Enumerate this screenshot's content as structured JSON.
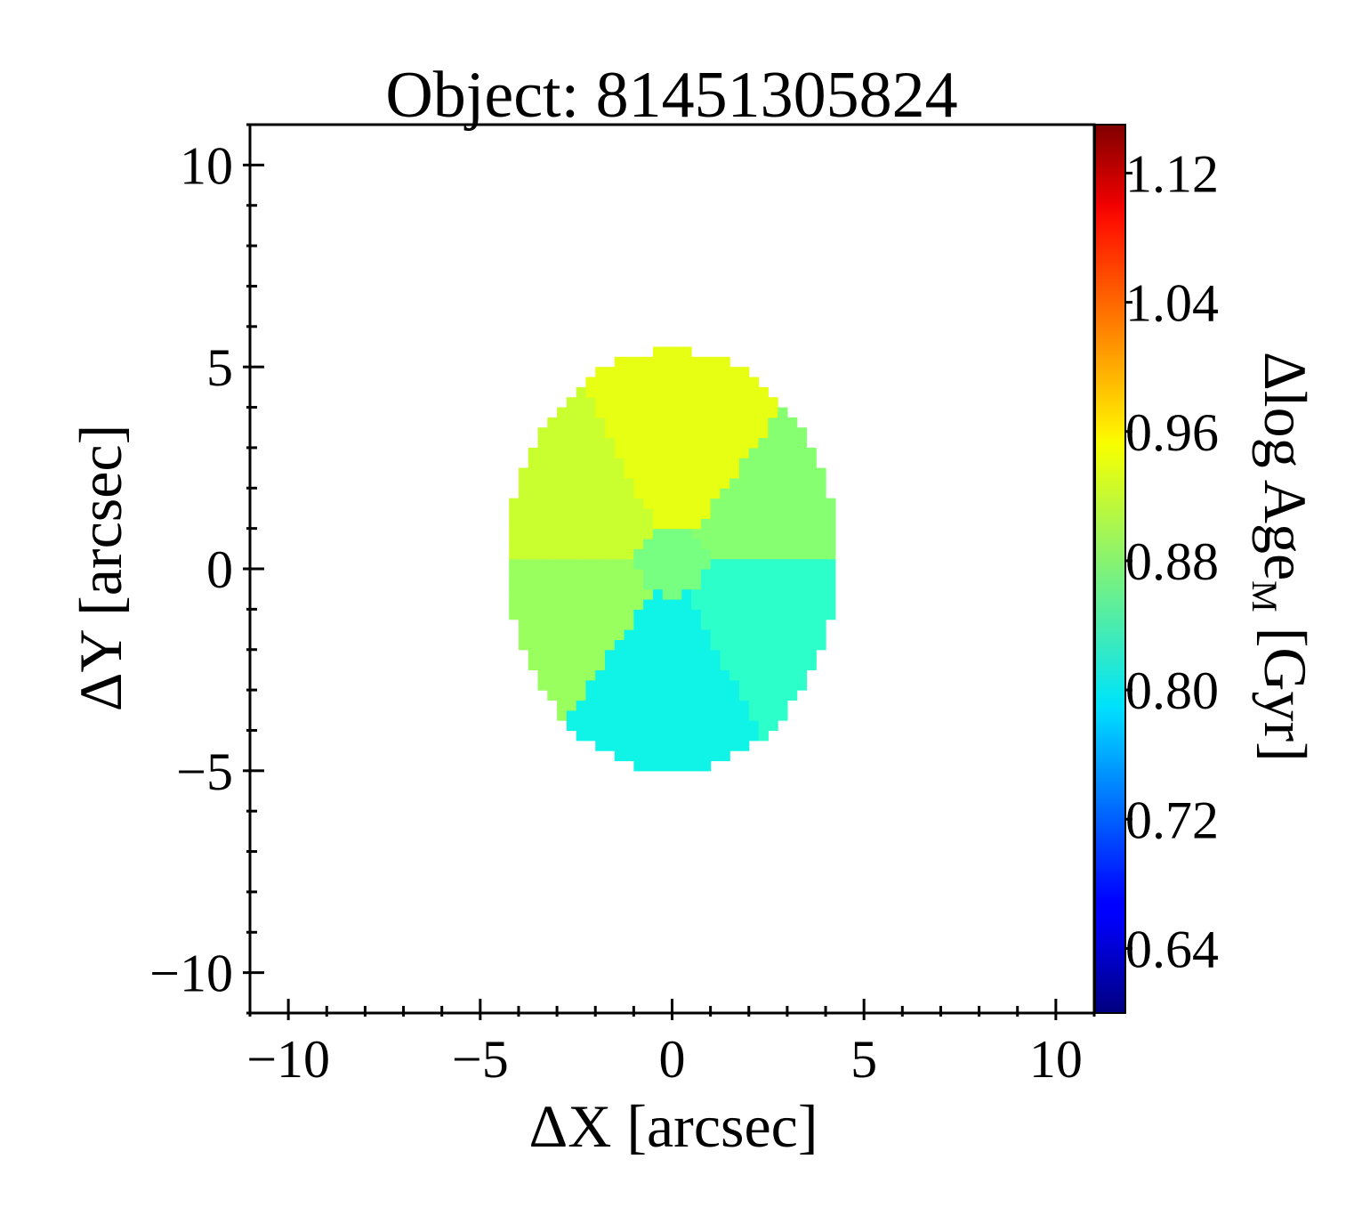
{
  "chart_data": {
    "type": "heatmap",
    "title": "Object: 81451305824",
    "xlabel": "ΔX [arcsec]",
    "ylabel": "ΔY [arcsec]",
    "xlim": [
      -11,
      11
    ],
    "ylim": [
      -11,
      11
    ],
    "x_ticks": [
      -10,
      -5,
      0,
      5,
      10
    ],
    "y_ticks": [
      -10,
      -5,
      0,
      5,
      10
    ],
    "x_tick_labels": [
      "−10",
      "−5",
      "0",
      "5",
      "10"
    ],
    "y_tick_labels": [
      "−10",
      "−5",
      "0",
      "5",
      "10"
    ],
    "colorbar": {
      "label_main": "Δlog Age",
      "label_sub": "M",
      "label_unit": " [Gyr]",
      "colormap": "jet",
      "range": [
        0.6,
        1.15
      ],
      "ticks": [
        0.64,
        0.72,
        0.8,
        0.88,
        0.96,
        1.04,
        1.12
      ],
      "tick_labels": [
        "0.64",
        "0.72",
        "0.80",
        "0.88",
        "0.96",
        "1.04",
        "1.12"
      ]
    },
    "map": {
      "center": [
        0.0,
        0.2
      ],
      "semi_axes": [
        4.3,
        5.2
      ],
      "pixel_size": 0.25,
      "regions": [
        {
          "name": "north",
          "value": 0.955,
          "color": "#e6ff12"
        },
        {
          "name": "north-west",
          "value": 0.935,
          "color": "#c9ff2e"
        },
        {
          "name": "north-east",
          "value": 0.88,
          "color": "#86ff71"
        },
        {
          "name": "south-west",
          "value": 0.905,
          "color": "#99ff5e"
        },
        {
          "name": "east",
          "value": 0.825,
          "color": "#2cffca"
        },
        {
          "name": "south",
          "value": 0.8,
          "color": "#0ff4e6"
        },
        {
          "name": "core",
          "value": 0.86,
          "color": "#76ff81"
        }
      ]
    }
  }
}
